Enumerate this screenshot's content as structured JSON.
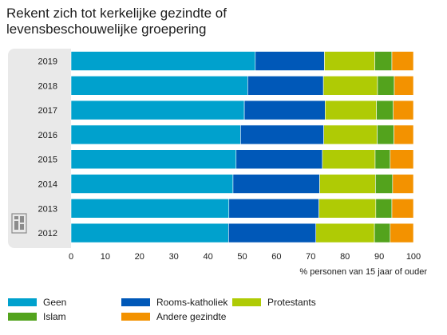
{
  "title_lines": [
    "Rekent zich tot kerkelijke gezindte of",
    "levensbeschouwelijke groepering"
  ],
  "chart_data": {
    "type": "bar",
    "orientation": "horizontal",
    "stacked": true,
    "categories": [
      "2019",
      "2018",
      "2017",
      "2016",
      "2015",
      "2014",
      "2013",
      "2012"
    ],
    "series": [
      {
        "name": "Geen",
        "color": "#00a1cd",
        "values": [
          53.8,
          51.6,
          50.6,
          49.5,
          48.2,
          47.3,
          46.1,
          46.0
        ]
      },
      {
        "name": "Rooms-katholiek",
        "color": "#0058b8",
        "values": [
          20.2,
          22.1,
          23.6,
          24.3,
          25.2,
          25.3,
          26.3,
          25.5
        ]
      },
      {
        "name": "Protestants",
        "color": "#afcb05",
        "values": [
          14.7,
          15.8,
          15.0,
          15.6,
          15.4,
          16.3,
          16.6,
          17.1
        ]
      },
      {
        "name": "Islam",
        "color": "#53a31d",
        "values": [
          5.0,
          4.9,
          4.9,
          4.9,
          4.4,
          5.0,
          4.7,
          4.6
        ]
      },
      {
        "name": "Andere gezindte",
        "color": "#f39200",
        "values": [
          6.3,
          5.6,
          5.9,
          5.7,
          6.8,
          6.1,
          6.3,
          6.8
        ]
      }
    ],
    "xlim": [
      0,
      100
    ],
    "xticks": [
      0,
      10,
      20,
      30,
      40,
      50,
      60,
      70,
      80,
      90,
      100
    ],
    "xlabel": "% personen van 15 jaar of ouder",
    "grid": false,
    "legend_position": "bottom"
  }
}
